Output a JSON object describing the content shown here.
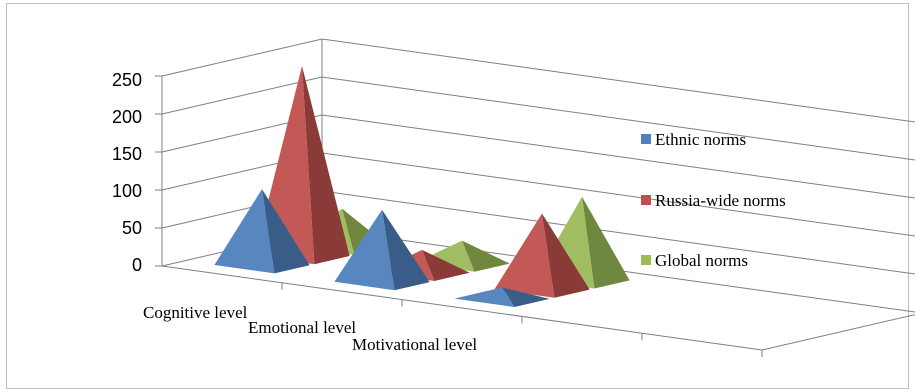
{
  "chart_data": {
    "type": "bar",
    "style": "3d-pyramid",
    "categories": [
      "Cognitive level",
      "Emotional level",
      "Motivational level"
    ],
    "series": [
      {
        "name": "Ethnic norms",
        "color": "#4f81bd",
        "values": [
          100,
          95,
          15
        ]
      },
      {
        "name": "Russia-wide norms",
        "color": "#c0504d",
        "values": [
          250,
          30,
          100
        ]
      },
      {
        "name": "Global norms",
        "color": "#9bbb59",
        "values": [
          50,
          30,
          110
        ]
      }
    ],
    "yticks": [
      "0",
      "50",
      "100",
      "150",
      "200",
      "250"
    ],
    "ylim": [
      0,
      250
    ],
    "grid": true,
    "legend": "right"
  }
}
